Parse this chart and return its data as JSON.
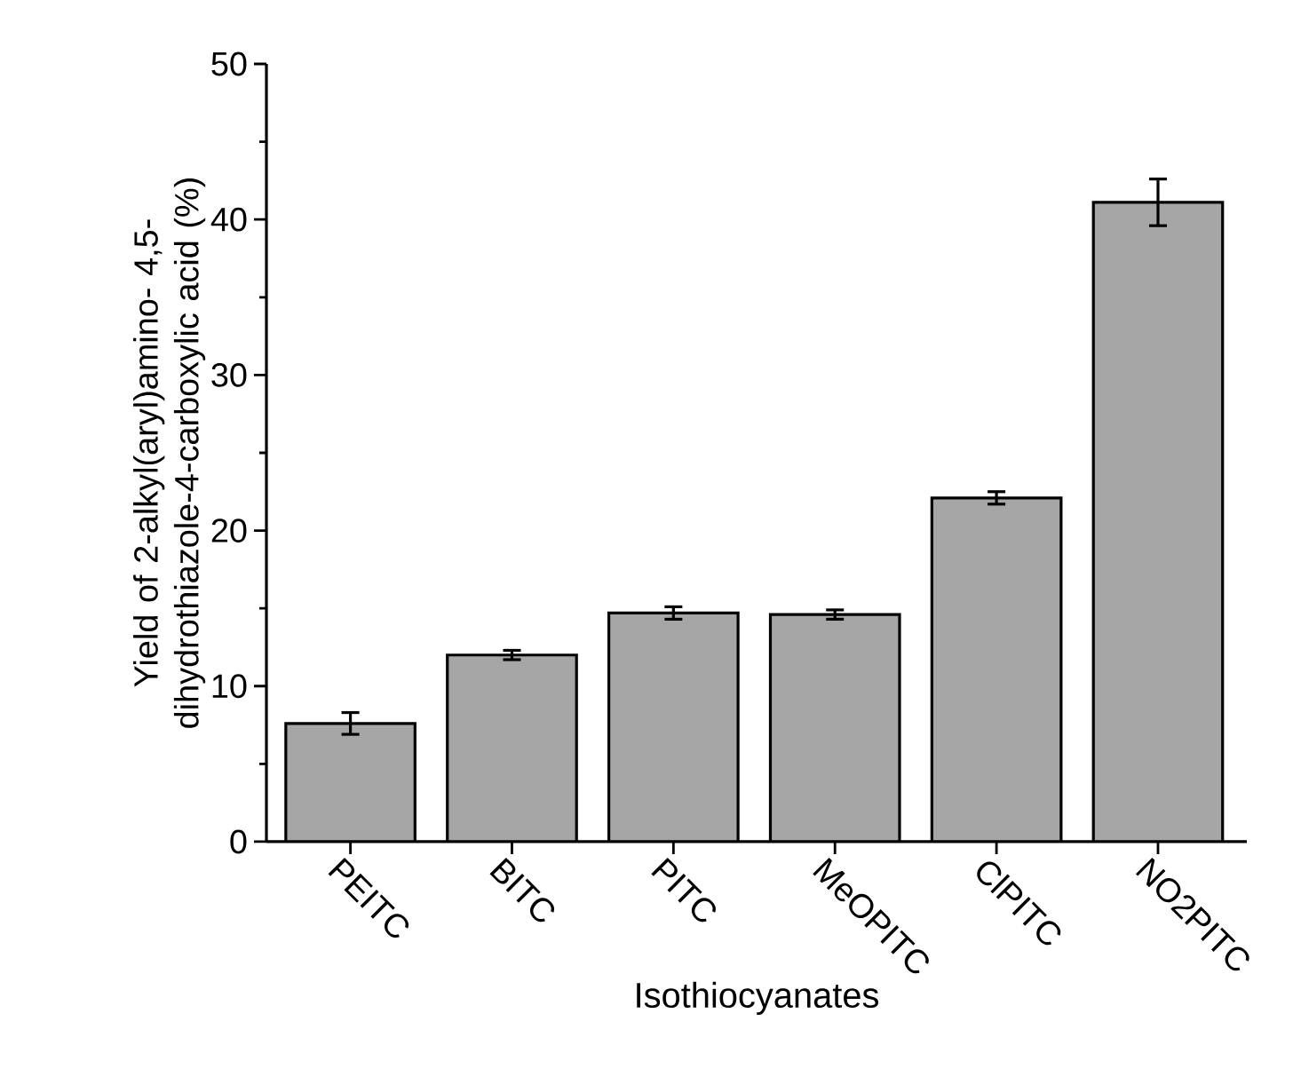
{
  "chart_data": {
    "type": "bar",
    "xlabel": "Isothiocyanates",
    "ylabel": "Yield of 2-alkyl(aryl)amino- 4,5-dihydrothiazole-4-carboxylic acid (%)",
    "categories": [
      "PEITC",
      "BITC",
      "PITC",
      "MeOPITC",
      "ClPITC",
      "NO2PITC"
    ],
    "values": [
      7.6,
      12.0,
      14.7,
      14.6,
      22.1,
      41.1
    ],
    "errors": [
      0.7,
      0.3,
      0.4,
      0.3,
      0.4,
      1.5
    ],
    "color": "#a6a6a6",
    "ylim": [
      0,
      50
    ],
    "yticks": [
      0,
      10,
      20,
      30,
      40,
      50
    ],
    "grid": false
  }
}
